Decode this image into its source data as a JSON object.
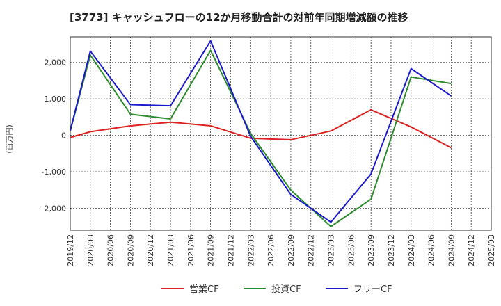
{
  "chart_data": {
    "type": "line",
    "title": "[3773]  キャッシュフローの12か月移動合計の対前年同期増減額の推移",
    "ylabel": "(百万円)",
    "xlabel": "",
    "ylim": [
      -2600,
      2700
    ],
    "yticks": [
      2000,
      1000,
      0,
      -1000,
      -2000
    ],
    "ytick_labels": [
      "2,000",
      "1,000",
      "0",
      "-1,000",
      "-2,000"
    ],
    "x_ticks": [
      "2019/12",
      "2020/03",
      "2020/06",
      "2020/09",
      "2020/12",
      "2021/03",
      "2021/06",
      "2021/09",
      "2021/12",
      "2022/03",
      "2022/06",
      "2022/09",
      "2022/12",
      "2023/03",
      "2023/06",
      "2023/09",
      "2023/12",
      "2024/03",
      "2024/06",
      "2024/09",
      "2024/12",
      "2025/03"
    ],
    "grid": true,
    "legend_position": "bottom",
    "series": [
      {
        "name": "営業CF",
        "color": "#dd2222",
        "x": [
          "2019/12",
          "2020/03",
          "2020/09",
          "2021/03",
          "2021/09",
          "2022/03",
          "2022/09",
          "2023/03",
          "2023/09",
          "2024/03",
          "2024/09"
        ],
        "values": [
          -60,
          100,
          260,
          360,
          260,
          -80,
          -120,
          120,
          700,
          230,
          -340
        ]
      },
      {
        "name": "投資CF",
        "color": "#2e8b2e",
        "x": [
          "2019/12",
          "2020/03",
          "2020/09",
          "2021/03",
          "2021/09",
          "2022/03",
          "2022/09",
          "2023/03",
          "2023/09",
          "2024/03",
          "2024/09"
        ],
        "values": [
          120,
          2200,
          580,
          450,
          2330,
          50,
          -1500,
          -2500,
          -1750,
          1600,
          1420
        ]
      },
      {
        "name": "フリーCF",
        "color": "#1a1acc",
        "x": [
          "2019/12",
          "2020/03",
          "2020/09",
          "2021/03",
          "2021/09",
          "2022/03",
          "2022/09",
          "2023/03",
          "2023/09",
          "2024/03",
          "2024/09"
        ],
        "values": [
          130,
          2310,
          840,
          810,
          2590,
          -30,
          -1620,
          -2380,
          -1060,
          1830,
          1080
        ]
      }
    ]
  }
}
